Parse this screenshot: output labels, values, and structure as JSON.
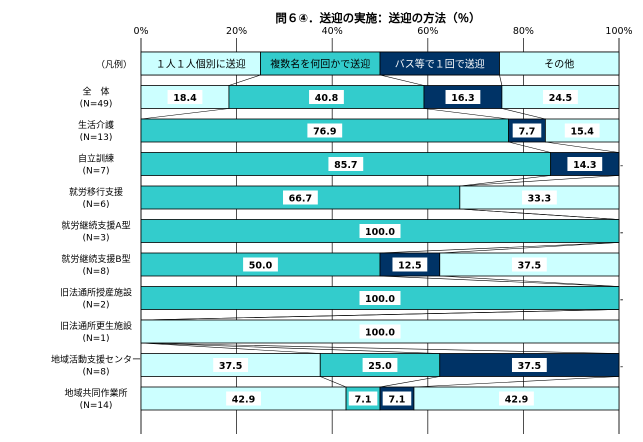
{
  "chart_data": {
    "type": "bar",
    "orientation": "horizontal",
    "stacked": "percent",
    "title": "問６④．送迎の実施：送迎の方法（％）",
    "x_ticks": [
      "0%",
      "20%",
      "40%",
      "60%",
      "80%",
      "100%"
    ],
    "xlim": [
      0,
      100
    ],
    "legend_row_label": "（凡例）",
    "series": [
      {
        "name": "１人１人個別に送迎",
        "color": "#ccffff"
      },
      {
        "name": "複数名を何回かで送迎",
        "color": "#33cccc"
      },
      {
        "name": "バス等で１回で送迎",
        "color": "#003366"
      },
      {
        "name": "その他",
        "color": "#ccffff"
      }
    ],
    "categories": [
      {
        "name": "全　体",
        "n": "(N=49)",
        "values": [
          18.4,
          40.8,
          16.3,
          24.5
        ],
        "labels": [
          "18.4",
          "40.8",
          "16.3",
          "24.5"
        ]
      },
      {
        "name": "生活介護",
        "n": "(N=13)",
        "values": [
          0,
          76.9,
          7.7,
          15.4
        ],
        "labels": [
          "-",
          "76.9",
          "7.7",
          "15.4"
        ]
      },
      {
        "name": "自立訓練",
        "n": "(N=7)",
        "values": [
          0,
          85.7,
          14.3,
          0
        ],
        "labels": [
          "-",
          "85.7",
          "14.3",
          "-"
        ]
      },
      {
        "name": "就労移行支援",
        "n": "(N=6)",
        "values": [
          0,
          66.7,
          0,
          33.3
        ],
        "labels": [
          "-",
          "66.7",
          "-",
          "33.3"
        ]
      },
      {
        "name": "就労継続支援A型",
        "n": "(N=3)",
        "values": [
          0,
          100.0,
          0,
          0
        ],
        "labels": [
          "-",
          "100.0",
          "-",
          "-"
        ]
      },
      {
        "name": "就労継続支援B型",
        "n": "(N=8)",
        "values": [
          0,
          50.0,
          12.5,
          37.5
        ],
        "labels": [
          "-",
          "50.0",
          "12.5",
          "37.5"
        ]
      },
      {
        "name": "旧法通所授産施設",
        "n": "(N=2)",
        "values": [
          0,
          100.0,
          0,
          0
        ],
        "labels": [
          "-",
          "100.0",
          "-",
          "-"
        ]
      },
      {
        "name": "旧法通所更生施設",
        "n": "(N=1)",
        "values": [
          0,
          0,
          0,
          100.0
        ],
        "labels": [
          "-",
          "-",
          "-",
          "100.0"
        ]
      },
      {
        "name": "地域活動支援センター",
        "n": "(N=8)",
        "values": [
          37.5,
          25.0,
          37.5,
          0
        ],
        "labels": [
          "37.5",
          "25.0",
          "37.5",
          "-"
        ]
      },
      {
        "name": "地域共同作業所",
        "n": "(N=14)",
        "values": [
          42.9,
          7.1,
          7.1,
          42.9
        ],
        "labels": [
          "42.9",
          "7.1",
          "7.1",
          "42.9"
        ]
      }
    ]
  }
}
